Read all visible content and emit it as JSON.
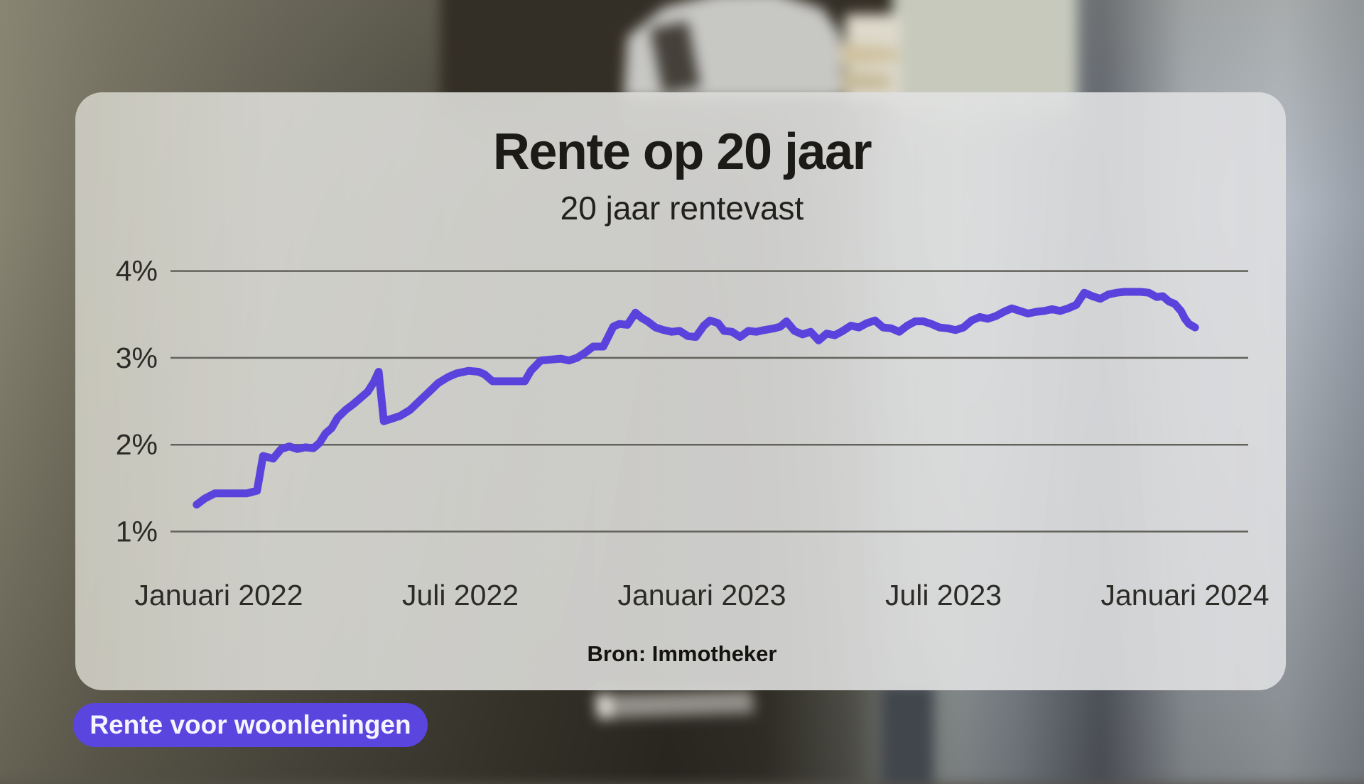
{
  "page": {
    "title": "Rente op 20 jaar",
    "subtitle": "20 jaar rentevast",
    "source": "Bron: Immotheker",
    "tag_button_label": "Rente voor woonleningen"
  },
  "colors": {
    "accent_purple": "#5b45df",
    "line_purple": "#5a43dd",
    "gridline": "#63625c",
    "text_dark": "#1c1b18",
    "card_glass": "rgba(231,231,229,0.85)"
  },
  "icons": {
    "background_subject": "door-key-in-lock-photo"
  },
  "chart_data": {
    "type": "line",
    "title": "Rente op 20 jaar",
    "subtitle": "20 jaar rentevast",
    "source": "Bron: Immotheker",
    "xlabel": "",
    "ylabel": "",
    "grid": true,
    "legend": false,
    "ylim": [
      0.8,
      4.35
    ],
    "y_ticks": [
      {
        "label": "4%",
        "value": 4
      },
      {
        "label": "3%",
        "value": 3
      },
      {
        "label": "2%",
        "value": 2
      },
      {
        "label": "1%",
        "value": 1
      }
    ],
    "x_ticks": [
      {
        "label": "Januari 2022",
        "m": 0
      },
      {
        "label": "Juli 2022",
        "m": 6
      },
      {
        "label": "Januari 2023",
        "m": 12
      },
      {
        "label": "Juli 2023",
        "m": 18
      },
      {
        "label": "Januari 2024",
        "m": 24
      }
    ],
    "series": [
      {
        "name": "Rente op 20 jaar (%)",
        "points": [
          [
            -0.55,
            1.31
          ],
          [
            -0.35,
            1.38
          ],
          [
            -0.1,
            1.44
          ],
          [
            0.3,
            1.44
          ],
          [
            0.7,
            1.44
          ],
          [
            0.95,
            1.47
          ],
          [
            1.1,
            1.87
          ],
          [
            1.35,
            1.84
          ],
          [
            1.55,
            1.95
          ],
          [
            1.75,
            1.98
          ],
          [
            1.95,
            1.95
          ],
          [
            2.15,
            1.97
          ],
          [
            2.35,
            1.96
          ],
          [
            2.5,
            2.02
          ],
          [
            2.65,
            2.13
          ],
          [
            2.8,
            2.19
          ],
          [
            2.95,
            2.31
          ],
          [
            3.15,
            2.4
          ],
          [
            3.35,
            2.47
          ],
          [
            3.5,
            2.53
          ],
          [
            3.7,
            2.61
          ],
          [
            3.85,
            2.72
          ],
          [
            3.97,
            2.84
          ],
          [
            4.1,
            2.27
          ],
          [
            4.3,
            2.3
          ],
          [
            4.5,
            2.33
          ],
          [
            4.75,
            2.4
          ],
          [
            5.0,
            2.51
          ],
          [
            5.25,
            2.62
          ],
          [
            5.45,
            2.71
          ],
          [
            5.7,
            2.78
          ],
          [
            5.9,
            2.82
          ],
          [
            6.2,
            2.85
          ],
          [
            6.45,
            2.84
          ],
          [
            6.6,
            2.81
          ],
          [
            6.8,
            2.73
          ],
          [
            7.1,
            2.73
          ],
          [
            7.4,
            2.73
          ],
          [
            7.6,
            2.73
          ],
          [
            7.75,
            2.85
          ],
          [
            8.0,
            2.97
          ],
          [
            8.25,
            2.98
          ],
          [
            8.5,
            2.99
          ],
          [
            8.7,
            2.97
          ],
          [
            8.9,
            3.0
          ],
          [
            9.1,
            3.06
          ],
          [
            9.3,
            3.13
          ],
          [
            9.55,
            3.13
          ],
          [
            9.8,
            3.36
          ],
          [
            9.95,
            3.39
          ],
          [
            10.15,
            3.38
          ],
          [
            10.35,
            3.52
          ],
          [
            10.5,
            3.46
          ],
          [
            10.65,
            3.42
          ],
          [
            10.85,
            3.35
          ],
          [
            11.05,
            3.32
          ],
          [
            11.25,
            3.3
          ],
          [
            11.45,
            3.31
          ],
          [
            11.65,
            3.25
          ],
          [
            11.85,
            3.24
          ],
          [
            12.05,
            3.37
          ],
          [
            12.2,
            3.43
          ],
          [
            12.4,
            3.4
          ],
          [
            12.55,
            3.31
          ],
          [
            12.75,
            3.3
          ],
          [
            12.95,
            3.24
          ],
          [
            13.15,
            3.31
          ],
          [
            13.35,
            3.3
          ],
          [
            13.55,
            3.32
          ],
          [
            13.8,
            3.34
          ],
          [
            13.95,
            3.36
          ],
          [
            14.1,
            3.42
          ],
          [
            14.3,
            3.31
          ],
          [
            14.5,
            3.27
          ],
          [
            14.7,
            3.3
          ],
          [
            14.9,
            3.2
          ],
          [
            15.1,
            3.28
          ],
          [
            15.3,
            3.26
          ],
          [
            15.5,
            3.31
          ],
          [
            15.7,
            3.37
          ],
          [
            15.9,
            3.35
          ],
          [
            16.1,
            3.4
          ],
          [
            16.3,
            3.43
          ],
          [
            16.5,
            3.35
          ],
          [
            16.7,
            3.34
          ],
          [
            16.9,
            3.3
          ],
          [
            17.1,
            3.37
          ],
          [
            17.3,
            3.42
          ],
          [
            17.5,
            3.42
          ],
          [
            17.7,
            3.39
          ],
          [
            17.9,
            3.35
          ],
          [
            18.1,
            3.34
          ],
          [
            18.3,
            3.32
          ],
          [
            18.5,
            3.35
          ],
          [
            18.7,
            3.43
          ],
          [
            18.9,
            3.47
          ],
          [
            19.1,
            3.45
          ],
          [
            19.3,
            3.48
          ],
          [
            19.5,
            3.53
          ],
          [
            19.7,
            3.57
          ],
          [
            19.9,
            3.54
          ],
          [
            20.1,
            3.51
          ],
          [
            20.3,
            3.53
          ],
          [
            20.5,
            3.54
          ],
          [
            20.7,
            3.56
          ],
          [
            20.9,
            3.54
          ],
          [
            21.1,
            3.57
          ],
          [
            21.3,
            3.61
          ],
          [
            21.5,
            3.75
          ],
          [
            21.7,
            3.71
          ],
          [
            21.9,
            3.68
          ],
          [
            22.1,
            3.73
          ],
          [
            22.3,
            3.75
          ],
          [
            22.5,
            3.76
          ],
          [
            22.7,
            3.76
          ],
          [
            22.9,
            3.76
          ],
          [
            23.1,
            3.75
          ],
          [
            23.3,
            3.7
          ],
          [
            23.45,
            3.71
          ],
          [
            23.6,
            3.65
          ],
          [
            23.75,
            3.62
          ],
          [
            23.9,
            3.54
          ],
          [
            24.0,
            3.45
          ],
          [
            24.1,
            3.39
          ],
          [
            24.25,
            3.35
          ]
        ]
      }
    ]
  }
}
